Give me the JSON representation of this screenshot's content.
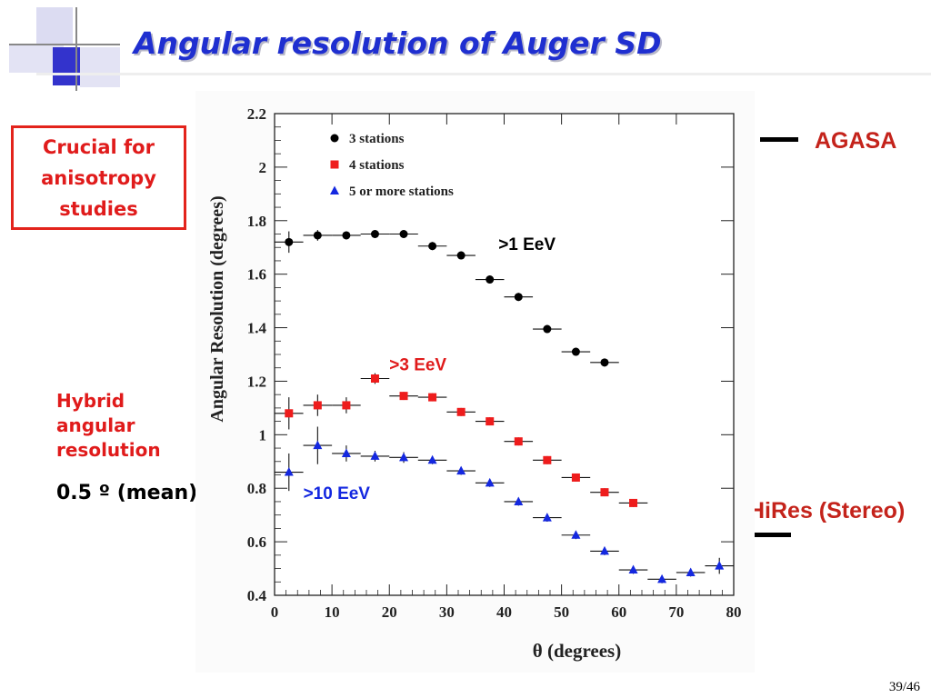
{
  "slide": {
    "title": "Angular resolution of Auger SD",
    "box_text": "Crucial for\nanisotropy\nstudies",
    "hybrid_text": "Hybrid\nangular\nresolution",
    "mean_text": "0.5 º (mean)",
    "agasa_label": "AGASA",
    "hires_label": "HiRes (Stereo)",
    "page_number": "39/46",
    "colors": {
      "title": "#1f2fd0",
      "accent_red": "#e01b1b",
      "label_dark_red": "#c4231b",
      "deco_blue": "#3333cc"
    }
  },
  "chart_data": {
    "type": "scatter",
    "xlabel": "θ (degrees)",
    "ylabel": "Angular Resolution (degrees)",
    "xlim": [
      0,
      80
    ],
    "ylim": [
      0.4,
      2.2
    ],
    "xticks": [
      "0",
      "10",
      "20",
      "30",
      "40",
      "50",
      "60",
      "70",
      "80"
    ],
    "yticks": [
      "0.4",
      "0.6",
      "0.8",
      "1",
      "1.2",
      "1.4",
      "1.6",
      "1.8",
      "2",
      "2.2"
    ],
    "grid": false,
    "legend_position": "top-left",
    "series": [
      {
        "name": "3 stations",
        "marker": "circle",
        "color": "#000000",
        "x": [
          2.5,
          7.5,
          12.5,
          17.5,
          22.5,
          27.5,
          32.5,
          37.5,
          42.5,
          47.5,
          52.5,
          57.5
        ],
        "y": [
          1.72,
          1.745,
          1.745,
          1.75,
          1.75,
          1.705,
          1.67,
          1.58,
          1.515,
          1.395,
          1.31,
          1.27
        ],
        "yerr": [
          0.04,
          0.02,
          0.015,
          0.015,
          0.015,
          0.015,
          0.015,
          0.015,
          0.015,
          0.015,
          0.015,
          0.015
        ]
      },
      {
        "name": "4 stations",
        "marker": "square",
        "color": "#ee1c1c",
        "x": [
          2.5,
          7.5,
          12.5,
          17.5,
          22.5,
          27.5,
          32.5,
          37.5,
          42.5,
          47.5,
          52.5,
          57.5,
          62.5
        ],
        "y": [
          1.08,
          1.11,
          1.11,
          1.21,
          1.145,
          1.14,
          1.085,
          1.05,
          0.975,
          0.905,
          0.84,
          0.785,
          0.745
        ],
        "yerr": [
          0.06,
          0.04,
          0.03,
          0.02,
          0.015,
          0.015,
          0.015,
          0.015,
          0.015,
          0.015,
          0.015,
          0.015,
          0.015
        ]
      },
      {
        "name": "5 or more stations",
        "marker": "triangle",
        "color": "#1428e0",
        "x": [
          2.5,
          7.5,
          12.5,
          17.5,
          22.5,
          27.5,
          32.5,
          37.5,
          42.5,
          47.5,
          52.5,
          57.5,
          62.5,
          67.5,
          72.5,
          77.5
        ],
        "y": [
          0.86,
          0.96,
          0.93,
          0.92,
          0.915,
          0.905,
          0.865,
          0.82,
          0.75,
          0.69,
          0.625,
          0.565,
          0.495,
          0.46,
          0.485,
          0.51
        ],
        "yerr": [
          0.07,
          0.07,
          0.03,
          0.02,
          0.02,
          0.015,
          0.015,
          0.015,
          0.015,
          0.015,
          0.015,
          0.015,
          0.015,
          0.015,
          0.015,
          0.03
        ]
      }
    ],
    "annotations": [
      {
        "text": ">1 EeV",
        "x": 39,
        "y": 1.69,
        "color": "#000000"
      },
      {
        "text": ">3 EeV",
        "x": 20,
        "y": 1.24,
        "color": "#e01b1b"
      },
      {
        "text": ">10 EeV",
        "x": 5,
        "y": 0.76,
        "color": "#1428e0"
      }
    ]
  }
}
